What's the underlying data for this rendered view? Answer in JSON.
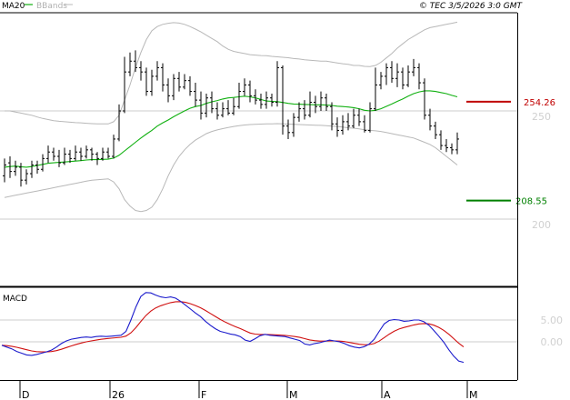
{
  "header": {
    "ma_label": "MA20",
    "bb_label": "BBands",
    "copyright": "© TEC 3/5/2026 3:0 GMT"
  },
  "colors": {
    "ma": "#10b010",
    "bbands": "#b8b8b8",
    "candles": "#000000",
    "resistance": "#c00000",
    "support": "#008000",
    "macd": "#1a1acc",
    "signal": "#d01010",
    "grid": "#cccccc",
    "axis_text": "#d0d0d0"
  },
  "chart_data": [
    {
      "type": "line",
      "name": "price",
      "x_labels": [
        "D",
        "26",
        "F",
        "M",
        "A",
        "M"
      ],
      "y_ticks": [
        250,
        200
      ],
      "y_tick_labels": [
        "250",
        "200"
      ],
      "ylim": [
        180,
        300
      ],
      "resistance": {
        "value": 254.26,
        "label": "254.26"
      },
      "support": {
        "value": 208.55,
        "label": "208.55"
      },
      "bars": [
        [
          220,
          225,
          228,
          217
        ],
        [
          226,
          222,
          229,
          219
        ],
        [
          222,
          224,
          227,
          220
        ],
        [
          224,
          218,
          226,
          215
        ],
        [
          218,
          221,
          223,
          216
        ],
        [
          221,
          225,
          227,
          219
        ],
        [
          225,
          223,
          227,
          221
        ],
        [
          223,
          228,
          230,
          222
        ],
        [
          228,
          231,
          234,
          226
        ],
        [
          231,
          229,
          233,
          227
        ],
        [
          229,
          226,
          232,
          224
        ],
        [
          226,
          230,
          233,
          225
        ],
        [
          230,
          228,
          232,
          226
        ],
        [
          228,
          231,
          234,
          227
        ],
        [
          231,
          229,
          233,
          227
        ],
        [
          229,
          232,
          234,
          228
        ],
        [
          232,
          230,
          233,
          227
        ],
        [
          230,
          228,
          231,
          225
        ],
        [
          228,
          231,
          233,
          227
        ],
        [
          231,
          229,
          233,
          228
        ],
        [
          229,
          237,
          239,
          228
        ],
        [
          237,
          250,
          253,
          236
        ],
        [
          250,
          268,
          275,
          249
        ],
        [
          268,
          273,
          277,
          266
        ],
        [
          273,
          270,
          278,
          268
        ],
        [
          270,
          268,
          273,
          264
        ],
        [
          268,
          259,
          270,
          257
        ],
        [
          259,
          266,
          269,
          257
        ],
        [
          266,
          270,
          273,
          264
        ],
        [
          270,
          262,
          272,
          259
        ],
        [
          262,
          257,
          265,
          254
        ],
        [
          257,
          265,
          267,
          255
        ],
        [
          265,
          261,
          268,
          259
        ],
        [
          261,
          264,
          267,
          260
        ],
        [
          264,
          259,
          266,
          257
        ],
        [
          259,
          255,
          263,
          252
        ],
        [
          255,
          249,
          259,
          246
        ],
        [
          249,
          256,
          258,
          247
        ],
        [
          256,
          251,
          259,
          249
        ],
        [
          251,
          248,
          254,
          246
        ],
        [
          248,
          251,
          254,
          247
        ],
        [
          251,
          249,
          255,
          248
        ],
        [
          249,
          252,
          256,
          248
        ],
        [
          252,
          259,
          263,
          251
        ],
        [
          259,
          262,
          265,
          257
        ],
        [
          262,
          257,
          264,
          254
        ],
        [
          257,
          255,
          260,
          253
        ],
        [
          255,
          253,
          258,
          251
        ],
        [
          253,
          256,
          259,
          251
        ],
        [
          256,
          254,
          258,
          252
        ],
        [
          254,
          270,
          273,
          252
        ],
        [
          270,
          243,
          271,
          239
        ],
        [
          243,
          240,
          246,
          237
        ],
        [
          240,
          247,
          249,
          238
        ],
        [
          247,
          251,
          254,
          245
        ],
        [
          251,
          248,
          255,
          246
        ],
        [
          248,
          254,
          259,
          247
        ],
        [
          254,
          252,
          257,
          249
        ],
        [
          252,
          256,
          259,
          250
        ],
        [
          256,
          252,
          258,
          250
        ],
        [
          252,
          244,
          254,
          241
        ],
        [
          244,
          241,
          247,
          238
        ],
        [
          241,
          245,
          248,
          239
        ],
        [
          245,
          243,
          249,
          241
        ],
        [
          243,
          248,
          251,
          242
        ],
        [
          248,
          245,
          251,
          243
        ],
        [
          245,
          241,
          248,
          240
        ],
        [
          241,
          251,
          254,
          240
        ],
        [
          251,
          262,
          270,
          250
        ],
        [
          262,
          266,
          268,
          260
        ],
        [
          266,
          270,
          272,
          262
        ],
        [
          270,
          265,
          273,
          263
        ],
        [
          265,
          268,
          272,
          261
        ],
        [
          268,
          262,
          270,
          260
        ],
        [
          262,
          268,
          271,
          261
        ],
        [
          268,
          270,
          274,
          266
        ],
        [
          270,
          263,
          272,
          260
        ],
        [
          263,
          248,
          265,
          246
        ],
        [
          248,
          243,
          251,
          241
        ],
        [
          243,
          239,
          245,
          237
        ],
        [
          239,
          234,
          241,
          232
        ],
        [
          234,
          233,
          237,
          231
        ],
        [
          233,
          232,
          235,
          230
        ],
        [
          232,
          237,
          240,
          230
        ]
      ],
      "ma20": [
        224,
        224.3,
        224.5,
        224.2,
        224,
        224.3,
        224.8,
        225.3,
        225.8,
        226,
        226.2,
        226.4,
        226.6,
        226.8,
        227,
        227.3,
        227.5,
        227.5,
        227.6,
        227.7,
        228.2,
        229.5,
        231.5,
        233.5,
        235.5,
        237.5,
        239.3,
        241,
        243,
        244.5,
        245.8,
        247.3,
        248.7,
        250,
        251.2,
        252,
        252.5,
        253.5,
        254.2,
        254.8,
        255.5,
        256,
        256.2,
        256.5,
        256.8,
        256.5,
        256,
        255.3,
        254.6,
        254.4,
        254.3,
        253.9,
        253.5,
        253.2,
        253.1,
        253,
        252.9,
        252.8,
        252.8,
        252.7,
        252.5,
        252.2,
        252,
        251.8,
        251.5,
        251,
        250.3,
        250,
        250.3,
        251,
        252.1,
        253.2,
        254.4,
        255.5,
        256.8,
        258,
        258.8,
        259.3,
        259.3,
        259,
        258.5,
        258,
        257.2,
        256.5
      ],
      "bb_upper": [
        250,
        250,
        249.5,
        249,
        248.5,
        248,
        247.2,
        246.5,
        246,
        245.5,
        245.2,
        245,
        244.8,
        244.6,
        244.5,
        244.3,
        244.1,
        244,
        244,
        244,
        245,
        248,
        255,
        262,
        270,
        277,
        283,
        287,
        289,
        290,
        290.5,
        290.8,
        290.6,
        290,
        289,
        287.8,
        286.5,
        285,
        283.5,
        282,
        280,
        278.5,
        277.5,
        277,
        276.5,
        276,
        275.8,
        275.6,
        275.5,
        275.2,
        275,
        274.8,
        274.6,
        274.2,
        274,
        273.6,
        273.4,
        273.2,
        273,
        273,
        272.6,
        272.2,
        271.8,
        271.5,
        271,
        271,
        270.6,
        270.5,
        271,
        272.5,
        274.5,
        276.5,
        279,
        281,
        283,
        284.5,
        286,
        287.5,
        288.5,
        289,
        289.5,
        290,
        290.5,
        291
      ],
      "bb_lower": [
        210,
        210.5,
        211,
        211.5,
        212,
        212.5,
        213,
        213.5,
        214,
        214.5,
        215,
        215.5,
        216,
        216.5,
        217,
        217.5,
        218,
        218.2,
        218.4,
        218.6,
        217.2,
        214,
        209,
        206,
        204,
        203.5,
        204,
        205.5,
        209,
        214,
        220,
        225,
        229,
        232,
        234.5,
        236.5,
        238,
        239.5,
        240.5,
        241.2,
        241.8,
        242.3,
        242.8,
        243.2,
        243.5,
        243.7,
        243.8,
        243.9,
        244,
        244,
        244.1,
        244,
        243.9,
        243.8,
        243.7,
        243.6,
        243.5,
        243.4,
        243.3,
        243.2,
        243,
        242.8,
        242.5,
        242.2,
        242,
        241.7,
        241.3,
        241,
        240.8,
        240.5,
        240,
        239.5,
        239,
        238.5,
        238,
        237.5,
        236.5,
        235.5,
        234.5,
        233,
        231,
        229,
        227,
        225
      ]
    },
    {
      "type": "line",
      "name": "MACD",
      "title": "MACD",
      "y_ticks": [
        5,
        0
      ],
      "y_tick_labels": [
        "5.00",
        "0.00"
      ],
      "ylim": [
        -6,
        13
      ],
      "macd": [
        -0.8,
        -1.2,
        -1.6,
        -2.2,
        -2.6,
        -3.0,
        -3.1,
        -2.9,
        -2.6,
        -2.3,
        -1.9,
        -1.2,
        -0.4,
        0.2,
        0.6,
        0.8,
        1.0,
        1.1,
        1.0,
        1.2,
        1.3,
        1.2,
        1.3,
        1.4,
        1.5,
        2.4,
        5.0,
        8.0,
        10.4,
        11.3,
        11.2,
        10.7,
        10.3,
        10.1,
        10.3,
        10.0,
        9.3,
        8.4,
        7.5,
        6.6,
        5.8,
        4.7,
        3.8,
        3.0,
        2.4,
        2.1,
        1.8,
        1.6,
        1.2,
        0.4,
        0.1,
        0.7,
        1.4,
        1.7,
        1.5,
        1.4,
        1.3,
        1.2,
        0.9,
        0.6,
        0.3,
        -0.5,
        -0.7,
        -0.4,
        -0.2,
        0.1,
        0.4,
        0.2,
        0.0,
        -0.4,
        -0.9,
        -1.2,
        -1.4,
        -1.1,
        -0.5,
        0.6,
        2.4,
        4.1,
        4.9,
        5.1,
        5.0,
        4.7,
        4.8,
        5.0,
        5.0,
        4.6,
        3.8,
        2.6,
        1.3,
        -0.1,
        -1.8,
        -3.3,
        -4.4,
        -4.7
      ]
    }
  ]
}
